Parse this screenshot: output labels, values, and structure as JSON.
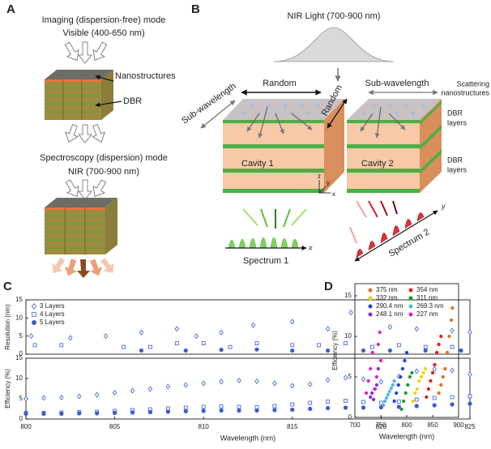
{
  "panels": {
    "a": {
      "label": "A",
      "imaging_mode": "Imaging (dispersion-free) mode",
      "imaging_band": "Visible (400-650 nm)",
      "nanostructures": "Nanostructures",
      "dbr": "DBR",
      "spectroscopy_mode": "Spectroscopy (dispersion) mode",
      "spectroscopy_band": "NIR (700-900 nm)"
    },
    "b": {
      "label": "B",
      "light": "NIR Light (700-900 nm)",
      "random_top": "Random",
      "subwavelength_left": "Sub-wavelength",
      "random_middle": "Random",
      "subwavelength_right": "Sub-wavelength",
      "scattering": [
        "Scattering",
        "nanostructures"
      ],
      "dbr_upper": [
        "DBR",
        "layers"
      ],
      "dbr_lower": [
        "DBR",
        "layers"
      ],
      "cavity1": "Cavity 1",
      "cavity2": "Cavity 2",
      "axis_z": "z",
      "axis_y": "y",
      "axis_x": "x",
      "spectrum1": "Spectrum 1",
      "spectrum1_axis": "x",
      "spectrum2": "Spectrum 2",
      "spectrum2_axis": "y"
    },
    "c": {
      "label": "C"
    },
    "d": {
      "label": "D"
    }
  },
  "chart_data": [
    {
      "type": "scatter",
      "ylabel": "Resolution (nm)",
      "xlim": [
        800,
        825
      ],
      "ylim": [
        0,
        15
      ],
      "yticks": [
        0,
        5,
        10,
        15
      ],
      "legend": "upper-left",
      "series": [
        {
          "name": "3 Layers",
          "color": "#3b5bd6",
          "marker": "diamond",
          "filled": false,
          "x": [
            800.3,
            802.5,
            804.5,
            806.5,
            808.5,
            809.6,
            811,
            812.8,
            815,
            817,
            818.3,
            820.5,
            822,
            824,
            825
          ],
          "values": [
            5,
            4.5,
            5,
            6,
            7,
            5,
            6,
            8,
            9,
            7,
            11.5,
            7.5,
            7,
            6.5,
            6
          ]
        },
        {
          "name": "4 Layers",
          "color": "#3b5bd6",
          "marker": "square",
          "filled": false,
          "x": [
            800.5,
            802,
            805.5,
            807,
            808.5,
            810,
            811.5,
            813,
            815,
            816.5,
            818,
            819.5,
            821,
            822.5,
            824
          ],
          "values": [
            2.5,
            2.5,
            2,
            2,
            3,
            3,
            2,
            3,
            2.5,
            2.5,
            3,
            2,
            2.5,
            2,
            2
          ]
        },
        {
          "name": "5 Layers",
          "color": "#3b5bd6",
          "marker": "circle",
          "filled": true,
          "x": [
            806.5,
            809,
            811,
            813,
            815,
            817,
            819,
            820.5,
            822.5,
            824.5
          ],
          "values": [
            1,
            1,
            1.2,
            1.3,
            1,
            1,
            1,
            1,
            1,
            1
          ]
        }
      ]
    },
    {
      "type": "scatter",
      "ylabel": "Efficiency (%)",
      "xlabel": "Wavelength (nm)",
      "xlim": [
        800,
        825
      ],
      "ylim": [
        0,
        15
      ],
      "yticks": [
        0,
        5,
        10,
        15
      ],
      "xticks": [
        800,
        805,
        810,
        815,
        820,
        825
      ],
      "x": [
        800,
        801,
        802,
        803,
        804,
        805,
        806,
        807,
        808,
        809,
        810,
        811,
        812,
        813,
        814,
        815,
        816,
        817,
        818,
        819,
        820,
        821,
        822,
        823,
        824,
        825
      ],
      "series": [
        {
          "name": "3 Layers",
          "color": "#3b5bd6",
          "marker": "diamond",
          "filled": false,
          "values": [
            5,
            5.2,
            5.3,
            5.6,
            6,
            6.5,
            7,
            7.4,
            8,
            8.4,
            8.8,
            9.2,
            9.5,
            9.3,
            8.8,
            8.2,
            8.6,
            9.6,
            10.2,
            9.8,
            9.2,
            10.5,
            11.8,
            12.3,
            12,
            11
          ]
        },
        {
          "name": "4 Layers",
          "color": "#3b5bd6",
          "marker": "square",
          "filled": false,
          "values": [
            1.5,
            1.5,
            1.6,
            1.7,
            1.8,
            2,
            2.2,
            2.4,
            2.6,
            2.8,
            3,
            3.1,
            3,
            2.9,
            3.2,
            3.6,
            4,
            4.3,
            4.5,
            4.2,
            4,
            4.3,
            4.8,
            5.2,
            5.4,
            5.6
          ]
        },
        {
          "name": "5 Layers",
          "color": "#3b5bd6",
          "marker": "circle",
          "filled": true,
          "values": [
            1.3,
            1.3,
            1.3,
            1.4,
            1.4,
            1.5,
            1.6,
            1.7,
            1.8,
            1.9,
            2,
            2.1,
            2.1,
            2.1,
            2.2,
            2.3,
            2.5,
            2.7,
            2.8,
            2.8,
            2.9,
            3,
            3.2,
            3.4,
            3.6,
            3.8
          ]
        }
      ]
    },
    {
      "type": "scatter",
      "ylabel": "Efficiency (%)",
      "xlabel": "Wavelength (nm)",
      "xlim": [
        700,
        900
      ],
      "ylim": [
        0,
        16.5
      ],
      "xticks": [
        700,
        750,
        800,
        850,
        900
      ],
      "yticks": [
        0,
        5,
        10,
        15
      ],
      "legend": "upper-center",
      "series": [
        {
          "name": "375 nm",
          "color": "#e0711c",
          "marker": "circle",
          "filled": true,
          "x": [
            862,
            866,
            870,
            874,
            878,
            882,
            886,
            888
          ],
          "values": [
            3,
            4,
            5,
            6,
            8,
            10,
            12,
            13.5
          ]
        },
        {
          "name": "332 nm",
          "color": "#f2cf0c",
          "marker": "circle",
          "filled": true,
          "x": [
            812,
            816,
            820,
            824,
            828,
            832,
            836
          ],
          "values": [
            2,
            3,
            3.5,
            4.5,
            5,
            5.5,
            6
          ]
        },
        {
          "name": "290.4 nm",
          "color": "#1f3fd9",
          "marker": "circle",
          "filled": true,
          "x": [
            776,
            780,
            784,
            788,
            792,
            796,
            800
          ],
          "values": [
            2,
            3,
            4,
            5,
            6,
            7,
            8
          ]
        },
        {
          "name": "248.1 nm",
          "color": "#8a2bd9",
          "marker": "circle",
          "filled": true,
          "x": [
            730,
            733,
            736,
            739,
            742,
            745
          ],
          "values": [
            2.5,
            3,
            2.2,
            3.5,
            4,
            6
          ]
        },
        {
          "name": "354 nm",
          "color": "#e0201a",
          "marker": "circle",
          "filled": true,
          "x": [
            838,
            842,
            846,
            850,
            854,
            858,
            862,
            866
          ],
          "values": [
            2.5,
            3.5,
            4.5,
            5.5,
            6.5,
            8,
            9,
            10
          ]
        },
        {
          "name": "311 nm",
          "color": "#1a9a2a",
          "marker": "circle",
          "filled": true,
          "x": [
            790,
            794,
            798,
            802,
            806,
            810
          ],
          "values": [
            1,
            2,
            3,
            4,
            5,
            5.5
          ]
        },
        {
          "name": "269.3 nm",
          "color": "#4fb8e8",
          "marker": "circle",
          "filled": true,
          "x": [
            755,
            758,
            761,
            764,
            767,
            770,
            773,
            776
          ],
          "values": [
            1.5,
            2,
            2.4,
            2.8,
            3.2,
            3.6,
            4,
            4.5
          ]
        },
        {
          "name": "227 nm",
          "color": "#e020c8",
          "marker": "circle",
          "filled": true,
          "x": [
            722,
            726,
            730,
            734,
            738,
            742,
            745,
            748,
            750
          ],
          "values": [
            3,
            4.5,
            6,
            8,
            3.5,
            5,
            9,
            10.5,
            7
          ]
        }
      ]
    }
  ]
}
